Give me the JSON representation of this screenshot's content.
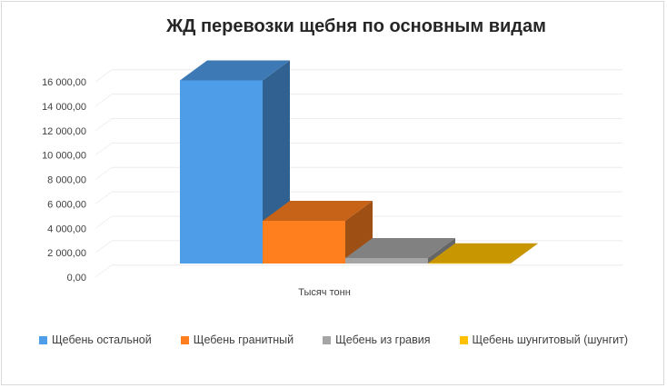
{
  "chart_data": {
    "type": "bar",
    "title": "ЖД перевозки щебня по основным видам",
    "categories": [
      "Тысяч тонн"
    ],
    "series": [
      {
        "name": "Щебень остальной",
        "values": [
          15000
        ],
        "color": "#4e9de8"
      },
      {
        "name": "Щебень гранитный",
        "values": [
          3500
        ],
        "color": "#ff7f1f"
      },
      {
        "name": "Щебень из гравия",
        "values": [
          450
        ],
        "color": "#a5a5a5"
      },
      {
        "name": "Щебень шунгитовый (шунгит)",
        "values": [
          20
        ],
        "color": "#ffc000"
      }
    ],
    "yticks": [
      "0,00",
      "2 000,00",
      "4 000,00",
      "6 000,00",
      "8 000,00",
      "10 000,00",
      "12 000,00",
      "14 000,00",
      "16 000,00"
    ],
    "ylim": [
      0,
      16000
    ],
    "grid": true,
    "legend_position": "bottom",
    "style": "3d-column"
  }
}
